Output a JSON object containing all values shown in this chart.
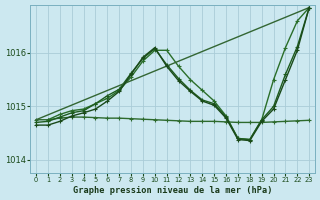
{
  "title": "Graphe pression niveau de la mer (hPa)",
  "bg_color": "#cce8f0",
  "grid_color": "#aaccd8",
  "xlim": [
    -0.5,
    23.5
  ],
  "ylim": [
    1013.75,
    1016.9
  ],
  "yticks": [
    1014,
    1015,
    1016
  ],
  "xticks": [
    0,
    1,
    2,
    3,
    4,
    5,
    6,
    7,
    8,
    9,
    10,
    11,
    12,
    13,
    14,
    15,
    16,
    17,
    18,
    19,
    20,
    21,
    22,
    23
  ],
  "series": [
    {
      "x": [
        0,
        1,
        2,
        3,
        4,
        5,
        6,
        7,
        8,
        9,
        10,
        11,
        12,
        13,
        14,
        15,
        16,
        17,
        18,
        19,
        20,
        21,
        22,
        23
      ],
      "y": [
        1014.75,
        1014.75,
        1014.78,
        1014.8,
        1014.8,
        1014.79,
        1014.78,
        1014.78,
        1014.77,
        1014.76,
        1014.75,
        1014.74,
        1014.73,
        1014.72,
        1014.72,
        1014.72,
        1014.71,
        1014.7,
        1014.7,
        1014.7,
        1014.71,
        1014.72,
        1014.73,
        1014.74
      ],
      "color": "#2d6a2d",
      "lw": 1.0,
      "marker": "+"
    },
    {
      "x": [
        1,
        2,
        3,
        4,
        5,
        6,
        7,
        8,
        9,
        10,
        11,
        12,
        13,
        14,
        15,
        16,
        17,
        18,
        19,
        20,
        21,
        22,
        23
      ],
      "y": [
        1014.75,
        1014.85,
        1014.92,
        1014.95,
        1015.05,
        1015.15,
        1015.3,
        1015.55,
        1015.85,
        1016.05,
        1016.05,
        1015.75,
        1015.5,
        1015.3,
        1015.1,
        1014.82,
        1014.4,
        1014.38,
        1014.75,
        1015.5,
        1016.1,
        1016.6,
        1016.85
      ],
      "color": "#2a6e2a",
      "lw": 1.0,
      "marker": "+"
    },
    {
      "x": [
        0,
        1,
        2,
        3,
        4,
        5,
        6,
        7,
        8,
        9,
        10,
        11,
        12,
        13,
        14,
        15,
        16,
        17,
        18,
        19,
        20,
        21,
        22,
        23
      ],
      "y": [
        1014.7,
        1014.72,
        1014.8,
        1014.88,
        1014.92,
        1015.05,
        1015.2,
        1015.32,
        1015.62,
        1015.9,
        1016.08,
        1015.78,
        1015.52,
        1015.3,
        1015.12,
        1015.05,
        1014.8,
        1014.4,
        1014.38,
        1014.75,
        1015.0,
        1015.6,
        1016.12,
        1016.85
      ],
      "color": "#1e5c1e",
      "lw": 1.0,
      "marker": "+"
    },
    {
      "x": [
        0,
        23
      ],
      "y": [
        1014.75,
        1016.85
      ],
      "color": "#336633",
      "lw": 1.0,
      "marker": null
    },
    {
      "x": [
        0,
        1,
        2,
        3,
        4,
        5,
        6,
        7,
        8,
        9,
        10,
        11,
        12,
        13,
        14,
        15,
        16,
        17,
        18,
        19,
        20,
        21,
        22,
        23
      ],
      "y": [
        1014.65,
        1014.65,
        1014.72,
        1014.82,
        1014.88,
        1014.95,
        1015.1,
        1015.28,
        1015.6,
        1015.92,
        1016.1,
        1015.75,
        1015.48,
        1015.28,
        1015.1,
        1015.02,
        1014.78,
        1014.38,
        1014.36,
        1014.72,
        1014.95,
        1015.5,
        1016.05,
        1016.85
      ],
      "color": "#1a4a1a",
      "lw": 1.0,
      "marker": "+"
    }
  ]
}
